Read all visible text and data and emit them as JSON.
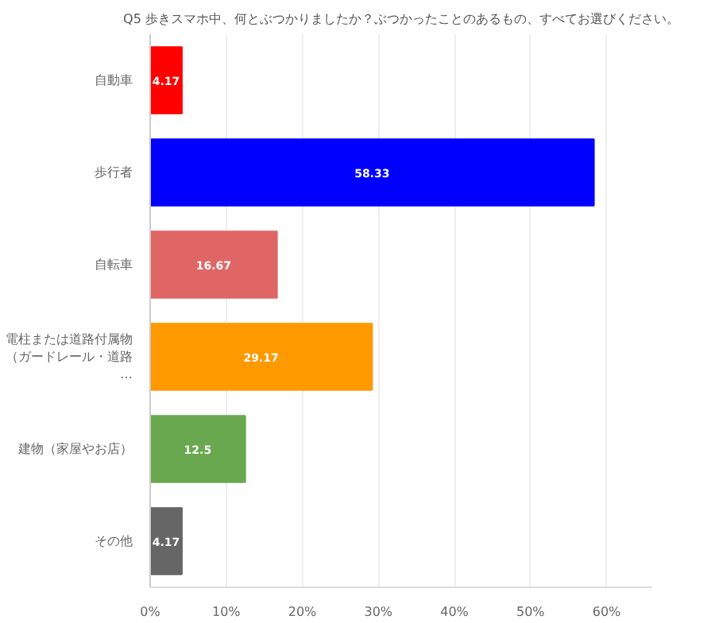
{
  "chart_data": {
    "type": "bar",
    "orientation": "horizontal",
    "title": "Q5 歩きスマホ中、何とぶつかりましたか？ぶつかったことのあるもの、すべてお選びください。",
    "categories": [
      "自動車",
      "歩行者",
      "自転車",
      "電柱または道路付属物（ガードレール・道路…",
      "建物（家屋やお店）",
      "その他"
    ],
    "values": [
      4.17,
      58.33,
      16.67,
      29.17,
      12.5,
      4.17
    ],
    "colors": [
      "#ff0000",
      "#0000ff",
      "#e06666",
      "#ff9900",
      "#6aa84f",
      "#666666"
    ],
    "xlim": [
      0,
      66
    ],
    "xticks": [
      {
        "value": 0,
        "label": "0%"
      },
      {
        "value": 10,
        "label": "10%"
      },
      {
        "value": 20,
        "label": "20%"
      },
      {
        "value": 30,
        "label": "30%"
      },
      {
        "value": 40,
        "label": "40%"
      },
      {
        "value": 50,
        "label": "50%"
      },
      {
        "value": 60,
        "label": "60%"
      }
    ],
    "grid": "x",
    "data_labels": true
  }
}
